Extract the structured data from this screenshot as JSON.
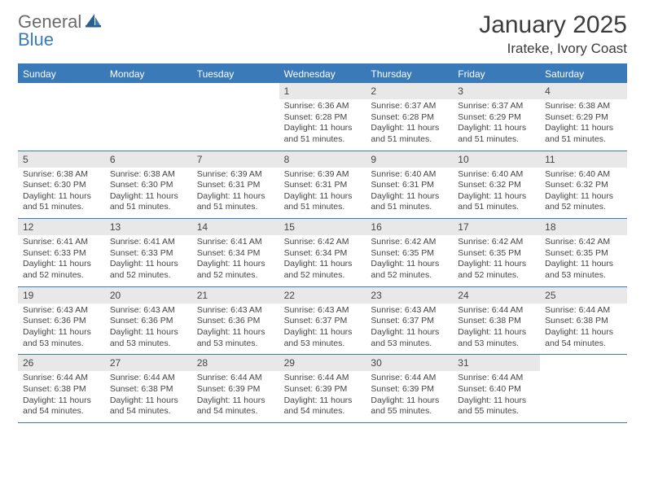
{
  "logo": {
    "general": "General",
    "blue": "Blue"
  },
  "title": "January 2025",
  "location": "Irateke, Ivory Coast",
  "colors": {
    "accent": "#3a7ab8",
    "dow_bg": "#3a7ab8",
    "daynum_bg": "#e8e8e8",
    "text": "#333333",
    "background": "#ffffff"
  },
  "dow": [
    "Sunday",
    "Monday",
    "Tuesday",
    "Wednesday",
    "Thursday",
    "Friday",
    "Saturday"
  ],
  "weeks": [
    [
      {
        "num": "",
        "lines": [
          "",
          "",
          "",
          ""
        ]
      },
      {
        "num": "",
        "lines": [
          "",
          "",
          "",
          ""
        ]
      },
      {
        "num": "",
        "lines": [
          "",
          "",
          "",
          ""
        ]
      },
      {
        "num": "1",
        "lines": [
          "Sunrise: 6:36 AM",
          "Sunset: 6:28 PM",
          "Daylight: 11 hours",
          "and 51 minutes."
        ]
      },
      {
        "num": "2",
        "lines": [
          "Sunrise: 6:37 AM",
          "Sunset: 6:28 PM",
          "Daylight: 11 hours",
          "and 51 minutes."
        ]
      },
      {
        "num": "3",
        "lines": [
          "Sunrise: 6:37 AM",
          "Sunset: 6:29 PM",
          "Daylight: 11 hours",
          "and 51 minutes."
        ]
      },
      {
        "num": "4",
        "lines": [
          "Sunrise: 6:38 AM",
          "Sunset: 6:29 PM",
          "Daylight: 11 hours",
          "and 51 minutes."
        ]
      }
    ],
    [
      {
        "num": "5",
        "lines": [
          "Sunrise: 6:38 AM",
          "Sunset: 6:30 PM",
          "Daylight: 11 hours",
          "and 51 minutes."
        ]
      },
      {
        "num": "6",
        "lines": [
          "Sunrise: 6:38 AM",
          "Sunset: 6:30 PM",
          "Daylight: 11 hours",
          "and 51 minutes."
        ]
      },
      {
        "num": "7",
        "lines": [
          "Sunrise: 6:39 AM",
          "Sunset: 6:31 PM",
          "Daylight: 11 hours",
          "and 51 minutes."
        ]
      },
      {
        "num": "8",
        "lines": [
          "Sunrise: 6:39 AM",
          "Sunset: 6:31 PM",
          "Daylight: 11 hours",
          "and 51 minutes."
        ]
      },
      {
        "num": "9",
        "lines": [
          "Sunrise: 6:40 AM",
          "Sunset: 6:31 PM",
          "Daylight: 11 hours",
          "and 51 minutes."
        ]
      },
      {
        "num": "10",
        "lines": [
          "Sunrise: 6:40 AM",
          "Sunset: 6:32 PM",
          "Daylight: 11 hours",
          "and 51 minutes."
        ]
      },
      {
        "num": "11",
        "lines": [
          "Sunrise: 6:40 AM",
          "Sunset: 6:32 PM",
          "Daylight: 11 hours",
          "and 52 minutes."
        ]
      }
    ],
    [
      {
        "num": "12",
        "lines": [
          "Sunrise: 6:41 AM",
          "Sunset: 6:33 PM",
          "Daylight: 11 hours",
          "and 52 minutes."
        ]
      },
      {
        "num": "13",
        "lines": [
          "Sunrise: 6:41 AM",
          "Sunset: 6:33 PM",
          "Daylight: 11 hours",
          "and 52 minutes."
        ]
      },
      {
        "num": "14",
        "lines": [
          "Sunrise: 6:41 AM",
          "Sunset: 6:34 PM",
          "Daylight: 11 hours",
          "and 52 minutes."
        ]
      },
      {
        "num": "15",
        "lines": [
          "Sunrise: 6:42 AM",
          "Sunset: 6:34 PM",
          "Daylight: 11 hours",
          "and 52 minutes."
        ]
      },
      {
        "num": "16",
        "lines": [
          "Sunrise: 6:42 AM",
          "Sunset: 6:35 PM",
          "Daylight: 11 hours",
          "and 52 minutes."
        ]
      },
      {
        "num": "17",
        "lines": [
          "Sunrise: 6:42 AM",
          "Sunset: 6:35 PM",
          "Daylight: 11 hours",
          "and 52 minutes."
        ]
      },
      {
        "num": "18",
        "lines": [
          "Sunrise: 6:42 AM",
          "Sunset: 6:35 PM",
          "Daylight: 11 hours",
          "and 53 minutes."
        ]
      }
    ],
    [
      {
        "num": "19",
        "lines": [
          "Sunrise: 6:43 AM",
          "Sunset: 6:36 PM",
          "Daylight: 11 hours",
          "and 53 minutes."
        ]
      },
      {
        "num": "20",
        "lines": [
          "Sunrise: 6:43 AM",
          "Sunset: 6:36 PM",
          "Daylight: 11 hours",
          "and 53 minutes."
        ]
      },
      {
        "num": "21",
        "lines": [
          "Sunrise: 6:43 AM",
          "Sunset: 6:36 PM",
          "Daylight: 11 hours",
          "and 53 minutes."
        ]
      },
      {
        "num": "22",
        "lines": [
          "Sunrise: 6:43 AM",
          "Sunset: 6:37 PM",
          "Daylight: 11 hours",
          "and 53 minutes."
        ]
      },
      {
        "num": "23",
        "lines": [
          "Sunrise: 6:43 AM",
          "Sunset: 6:37 PM",
          "Daylight: 11 hours",
          "and 53 minutes."
        ]
      },
      {
        "num": "24",
        "lines": [
          "Sunrise: 6:44 AM",
          "Sunset: 6:38 PM",
          "Daylight: 11 hours",
          "and 53 minutes."
        ]
      },
      {
        "num": "25",
        "lines": [
          "Sunrise: 6:44 AM",
          "Sunset: 6:38 PM",
          "Daylight: 11 hours",
          "and 54 minutes."
        ]
      }
    ],
    [
      {
        "num": "26",
        "lines": [
          "Sunrise: 6:44 AM",
          "Sunset: 6:38 PM",
          "Daylight: 11 hours",
          "and 54 minutes."
        ]
      },
      {
        "num": "27",
        "lines": [
          "Sunrise: 6:44 AM",
          "Sunset: 6:38 PM",
          "Daylight: 11 hours",
          "and 54 minutes."
        ]
      },
      {
        "num": "28",
        "lines": [
          "Sunrise: 6:44 AM",
          "Sunset: 6:39 PM",
          "Daylight: 11 hours",
          "and 54 minutes."
        ]
      },
      {
        "num": "29",
        "lines": [
          "Sunrise: 6:44 AM",
          "Sunset: 6:39 PM",
          "Daylight: 11 hours",
          "and 54 minutes."
        ]
      },
      {
        "num": "30",
        "lines": [
          "Sunrise: 6:44 AM",
          "Sunset: 6:39 PM",
          "Daylight: 11 hours",
          "and 55 minutes."
        ]
      },
      {
        "num": "31",
        "lines": [
          "Sunrise: 6:44 AM",
          "Sunset: 6:40 PM",
          "Daylight: 11 hours",
          "and 55 minutes."
        ]
      },
      {
        "num": "",
        "lines": [
          "",
          "",
          "",
          ""
        ]
      }
    ]
  ]
}
